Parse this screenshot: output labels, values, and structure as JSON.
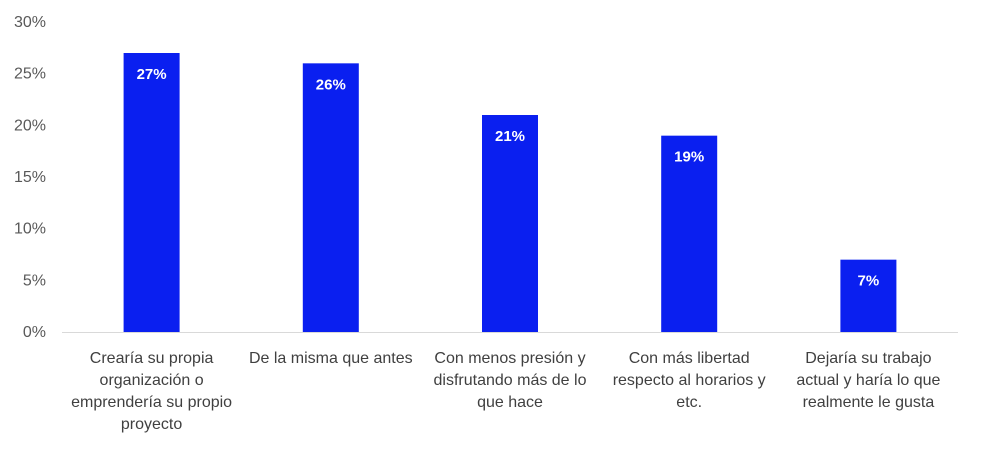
{
  "chart_data": {
    "type": "bar",
    "title": "",
    "xlabel": "",
    "ylabel": "",
    "ylim": [
      0,
      30
    ],
    "yticks": [
      "0%",
      "5%",
      "10%",
      "15%",
      "20%",
      "25%",
      "30%"
    ],
    "grid": false,
    "legend": "none",
    "bar_color": "#0A1FF0",
    "categories": [
      [
        "Crearía su propia",
        "organización o",
        "emprendería su propio",
        "proyecto"
      ],
      [
        "De la misma que antes"
      ],
      [
        "Con menos presión y",
        "disfrutando más de lo",
        "que hace"
      ],
      [
        "Con más libertad",
        "respecto al horarios y",
        "etc."
      ],
      [
        "Dejaría su trabajo",
        "actual y haría lo que",
        "realmente le gusta"
      ]
    ],
    "values": [
      27,
      26,
      21,
      19,
      7
    ],
    "data_labels": [
      "27%",
      "26%",
      "21%",
      "19%",
      "7%"
    ]
  }
}
